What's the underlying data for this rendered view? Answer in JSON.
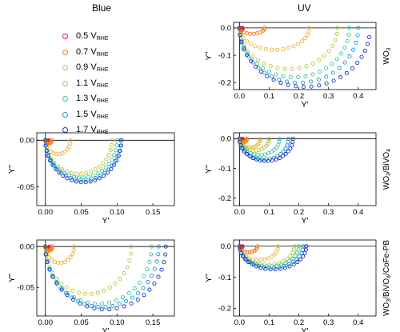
{
  "columns": [
    "Blue",
    "UV"
  ],
  "legend": [
    {
      "value": "0.5",
      "unit": "V",
      "sub": "RHE",
      "color": "#e8143c"
    },
    {
      "value": "0.7",
      "unit": "V",
      "sub": "RHE",
      "color": "#f07d14"
    },
    {
      "value": "0.9",
      "unit": "V",
      "sub": "RHE",
      "color": "#e8b43c"
    },
    {
      "value": "1.1",
      "unit": "V",
      "sub": "RHE",
      "color": "#b4c83c"
    },
    {
      "value": "1.3",
      "unit": "V",
      "sub": "RHE",
      "color": "#32c8a0"
    },
    {
      "value": "1.5",
      "unit": "V",
      "sub": "RHE",
      "color": "#1e96d2"
    },
    {
      "value": "1.7",
      "unit": "V",
      "sub": "RHE",
      "color": "#1432c8"
    }
  ],
  "chart_data": [
    {
      "type": "scatter",
      "id": "uv-wo3",
      "column": "UV",
      "row_label": "WO3",
      "xlabel": "Y'",
      "ylabel": "Y''",
      "xlim": [
        -0.02,
        0.46
      ],
      "ylim": [
        -0.225,
        0.02
      ],
      "xticks": [
        "0.0",
        "0.1",
        "0.2",
        "0.3",
        "0.4"
      ],
      "xtick_values": [
        0,
        0.1,
        0.2,
        0.3,
        0.4
      ],
      "yticks": [
        "0.0",
        "-0.1",
        "-0.2"
      ],
      "ytick_values": [
        0,
        -0.1,
        -0.2
      ],
      "series": [
        {
          "arc": [
            0.0,
            0.01,
            0.009,
            1.0,
            10
          ]
        },
        {
          "arc": [
            0.0,
            0.085,
            0.022,
            1.0,
            12
          ]
        },
        {
          "arc": [
            0.0,
            0.235,
            0.08,
            1.0,
            20
          ]
        },
        {
          "arc": [
            0.0,
            0.33,
            0.15,
            1.0,
            22
          ]
        },
        {
          "arc": [
            0.0,
            0.37,
            0.18,
            1.0,
            24
          ]
        },
        {
          "arc": [
            0.0,
            0.4,
            0.2,
            1.0,
            24
          ]
        },
        {
          "arc": [
            0.0,
            0.44,
            0.215,
            0.95,
            26
          ]
        }
      ]
    },
    {
      "type": "scatter",
      "id": "blue-wo3-bivo4",
      "column": "Blue",
      "row_label": "",
      "xlabel": "Y'",
      "ylabel": "Y''",
      "xlim": [
        -0.012,
        0.18
      ],
      "ylim": [
        -0.07,
        0.008
      ],
      "xticks": [
        "0.00",
        "0.05",
        "0.10",
        "0.15"
      ],
      "xtick_values": [
        0,
        0.05,
        0.1,
        0.15
      ],
      "yticks": [
        "0.00",
        "-0.05"
      ],
      "ytick_values": [
        0,
        -0.05
      ],
      "series": [
        {
          "arc": [
            0.0,
            0.004,
            0.0015,
            1.0,
            8
          ]
        },
        {
          "arc": [
            0.0,
            0.009,
            0.0035,
            1.0,
            9
          ]
        },
        {
          "arc": [
            0.0,
            0.035,
            0.015,
            1.0,
            14
          ]
        },
        {
          "arc": [
            0.0,
            0.093,
            0.036,
            1.0,
            22
          ]
        },
        {
          "arc": [
            0.0,
            0.1,
            0.04,
            1.0,
            24
          ]
        },
        {
          "arc": [
            0.0,
            0.105,
            0.043,
            1.0,
            24
          ]
        },
        {
          "arc": [
            0.0,
            0.106,
            0.045,
            1.0,
            26
          ]
        }
      ]
    },
    {
      "type": "scatter",
      "id": "uv-wo3-bivo4",
      "column": "UV",
      "row_label": "WO3/BiVO4",
      "xlabel": "Y'",
      "ylabel": "Y''",
      "xlim": [
        -0.02,
        0.46
      ],
      "ylim": [
        -0.225,
        0.02
      ],
      "xticks": [
        "0.0",
        "0.1",
        "0.2",
        "0.3",
        "0.4"
      ],
      "xtick_values": [
        0,
        0.1,
        0.2,
        0.3,
        0.4
      ],
      "yticks": [
        "0.0",
        "-0.1",
        "-0.2"
      ],
      "ytick_values": [
        0,
        -0.1,
        -0.2
      ],
      "series": [
        {
          "arc": [
            0.0,
            0.01,
            0.004,
            1.0,
            8
          ]
        },
        {
          "arc": [
            0.0,
            0.025,
            0.012,
            1.0,
            10
          ]
        },
        {
          "arc": [
            0.0,
            0.07,
            0.03,
            1.0,
            14
          ]
        },
        {
          "arc": [
            0.0,
            0.1,
            0.04,
            1.0,
            16
          ]
        },
        {
          "arc": [
            0.0,
            0.135,
            0.055,
            1.0,
            18
          ]
        },
        {
          "arc": [
            0.0,
            0.165,
            0.07,
            1.0,
            20
          ]
        },
        {
          "arc": [
            0.0,
            0.18,
            0.075,
            1.0,
            22
          ]
        }
      ]
    },
    {
      "type": "scatter",
      "id": "blue-wo3-bivo4-cofepb",
      "column": "Blue",
      "row_label": "",
      "xlabel": "Y'",
      "ylabel": "Y''",
      "xlim": [
        -0.012,
        0.18
      ],
      "ylim": [
        -0.085,
        0.008
      ],
      "xticks": [
        "0.00",
        "0.05",
        "0.10",
        "0.15"
      ],
      "xtick_values": [
        0,
        0.05,
        0.1,
        0.15
      ],
      "yticks": [
        "0.00",
        "-0.05"
      ],
      "ytick_values": [
        0,
        -0.05
      ],
      "series": [
        {
          "arc": [
            0.0,
            0.006,
            0.003,
            1.0,
            8
          ]
        },
        {
          "arc": [
            0.0,
            0.01,
            0.005,
            1.0,
            10
          ]
        },
        {
          "arc": [
            0.0,
            0.04,
            0.02,
            1.0,
            14
          ]
        },
        {
          "arc": [
            0.0,
            0.12,
            0.058,
            1.0,
            22
          ]
        },
        {
          "arc": [
            0.0,
            0.148,
            0.07,
            1.0,
            24
          ]
        },
        {
          "arc": [
            0.0,
            0.158,
            0.074,
            1.0,
            26
          ]
        },
        {
          "arc": [
            0.0,
            0.168,
            0.077,
            1.0,
            26
          ]
        }
      ]
    },
    {
      "type": "scatter",
      "id": "uv-wo3-bivo4-cofepb",
      "column": "UV",
      "row_label": "WO3/BiVO4/CoFe-PB",
      "xlabel": "Y'",
      "ylabel": "Y''",
      "xlim": [
        -0.02,
        0.46
      ],
      "ylim": [
        -0.225,
        0.02
      ],
      "xticks": [
        "0.0",
        "0.1",
        "0.2",
        "0.3",
        "0.4"
      ],
      "xtick_values": [
        0,
        0.1,
        0.2,
        0.3,
        0.4
      ],
      "yticks": [
        "0.0",
        "-0.1",
        "-0.2"
      ],
      "ytick_values": [
        0,
        -0.1,
        -0.2
      ],
      "series": [
        {
          "arc": [
            0.0,
            0.01,
            0.005,
            1.0,
            8
          ]
        },
        {
          "arc": [
            0.0,
            0.06,
            0.02,
            1.0,
            12
          ]
        },
        {
          "arc": [
            0.0,
            0.13,
            0.045,
            1.0,
            16
          ]
        },
        {
          "arc": [
            0.0,
            0.185,
            0.06,
            1.0,
            18
          ]
        },
        {
          "arc": [
            0.0,
            0.2,
            0.065,
            1.0,
            20
          ]
        },
        {
          "arc": [
            0.0,
            0.215,
            0.07,
            1.0,
            20
          ]
        },
        {
          "arc": [
            0.0,
            0.225,
            0.075,
            1.0,
            22
          ]
        }
      ]
    }
  ]
}
